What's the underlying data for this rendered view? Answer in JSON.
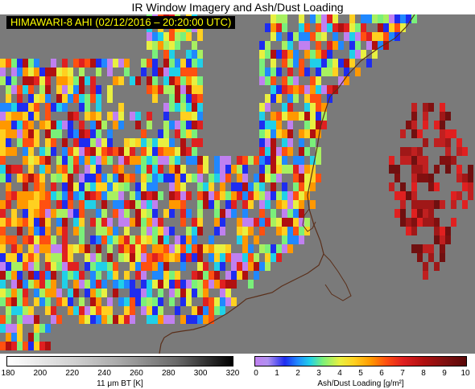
{
  "title": "IR Window Imagery and Ash/Dust Loading",
  "timestamp_label": "HIMAWARI-8 AHI (02/12/2016 – 20:20:00 UTC)",
  "colorbars": {
    "brightness_temperature": {
      "label": "11 μm BT [K]",
      "ticks": [
        "180",
        "200",
        "220",
        "240",
        "260",
        "280",
        "300",
        "320"
      ]
    },
    "ash_loading": {
      "label": "Ash/Dust Loading [g/m²]",
      "ticks": [
        "0",
        "1",
        "2",
        "3",
        "4",
        "5",
        "6",
        "7",
        "8",
        "9",
        "10"
      ]
    }
  },
  "colors": {
    "background_gray": "#7a7a7a",
    "coastline": "#5a2f1a",
    "timestamp_text": "#ffff00",
    "timestamp_bg": "#000000"
  }
}
